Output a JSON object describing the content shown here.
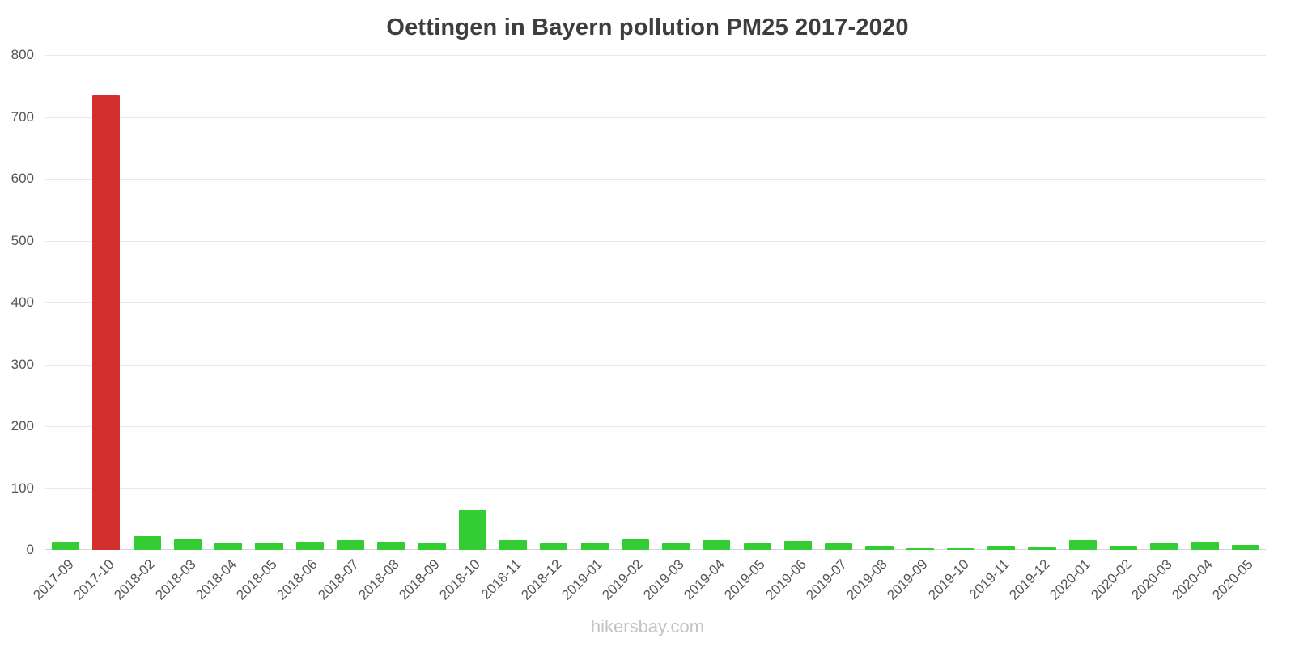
{
  "page": {
    "footer": "hikersbay.com"
  },
  "chart_data": {
    "type": "bar",
    "title": "Oettingen in Bayern pollution PM25 2017-2020",
    "xlabel": "",
    "ylabel": "",
    "ylim": [
      0,
      800
    ],
    "ytick_step": 100,
    "grid": true,
    "legend": "none",
    "bar_color": "#33cc33",
    "highlight_color": "#d32f2f",
    "highlight_category": "2017-10",
    "categories": [
      "2017-09",
      "2017-10",
      "2018-02",
      "2018-03",
      "2018-04",
      "2018-05",
      "2018-06",
      "2018-07",
      "2018-08",
      "2018-09",
      "2018-10",
      "2018-11",
      "2018-12",
      "2019-01",
      "2019-02",
      "2019-03",
      "2019-04",
      "2019-05",
      "2019-06",
      "2019-07",
      "2019-08",
      "2019-09",
      "2019-10",
      "2019-11",
      "2019-12",
      "2020-01",
      "2020-02",
      "2020-03",
      "2020-04",
      "2020-05"
    ],
    "values": [
      13,
      735,
      22,
      18,
      12,
      12,
      13,
      16,
      13,
      11,
      65,
      16,
      10,
      12,
      17,
      10,
      16,
      10,
      14,
      10,
      6,
      2,
      2,
      6,
      5,
      16,
      6,
      10,
      13,
      8
    ]
  }
}
